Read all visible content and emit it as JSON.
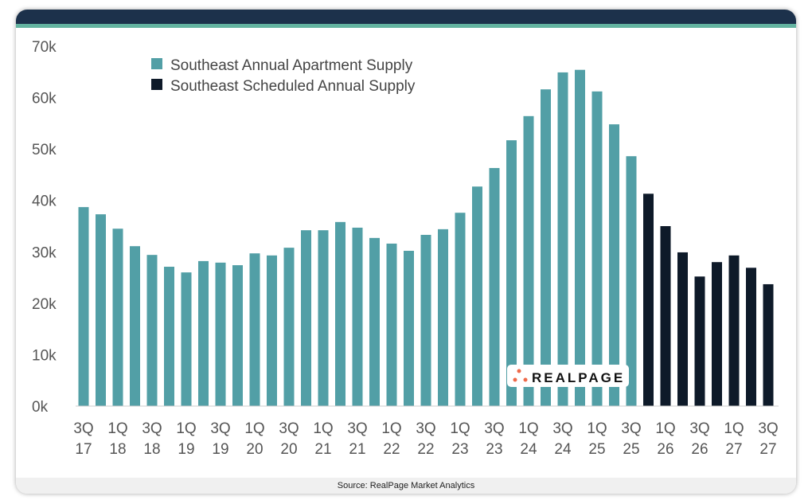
{
  "source": "Source: RealPage Market Analytics",
  "logo_text": "REALPAGE",
  "colors": {
    "actual": "#529fa6",
    "scheduled": "#0e1a29",
    "header": "#1c314b",
    "accent": "#63b3a0"
  },
  "chart_data": {
    "type": "bar",
    "title": "",
    "xlabel": "",
    "ylabel": "",
    "ylim": [
      0,
      70000
    ],
    "y_ticks": [
      "0k",
      "10k",
      "20k",
      "30k",
      "40k",
      "50k",
      "60k",
      "70k"
    ],
    "x_tick_labels": [
      [
        "3Q",
        "17"
      ],
      [
        "1Q",
        "18"
      ],
      [
        "3Q",
        "18"
      ],
      [
        "1Q",
        "19"
      ],
      [
        "3Q",
        "19"
      ],
      [
        "1Q",
        "20"
      ],
      [
        "3Q",
        "20"
      ],
      [
        "1Q",
        "21"
      ],
      [
        "3Q",
        "21"
      ],
      [
        "1Q",
        "22"
      ],
      [
        "3Q",
        "22"
      ],
      [
        "1Q",
        "23"
      ],
      [
        "3Q",
        "23"
      ],
      [
        "1Q",
        "24"
      ],
      [
        "3Q",
        "24"
      ],
      [
        "1Q",
        "25"
      ],
      [
        "3Q",
        "25"
      ],
      [
        "1Q",
        "26"
      ],
      [
        "3Q",
        "26"
      ],
      [
        "1Q",
        "27"
      ],
      [
        "3Q",
        "27"
      ]
    ],
    "legend": [
      "Southeast Annual Apartment Supply",
      "Southeast Scheduled Annual Supply"
    ],
    "legend_position": "top-left",
    "series": [
      {
        "name": "Southeast Annual Apartment Supply",
        "start_index": 0,
        "values": [
          38700,
          37300,
          34500,
          31100,
          29400,
          27100,
          26000,
          28200,
          27900,
          27400,
          29700,
          29300,
          30800,
          34200,
          34200,
          35800,
          34700,
          32700,
          31600,
          30200,
          33300,
          34400,
          37600,
          42700,
          46300,
          51700,
          56400,
          61600,
          64900,
          65400,
          61200,
          54800,
          48600
        ]
      },
      {
        "name": "Southeast Scheduled Annual Supply",
        "start_index": 33,
        "values": [
          41300,
          35000,
          29900,
          25200,
          28000,
          29300,
          26900,
          23700
        ]
      }
    ]
  }
}
